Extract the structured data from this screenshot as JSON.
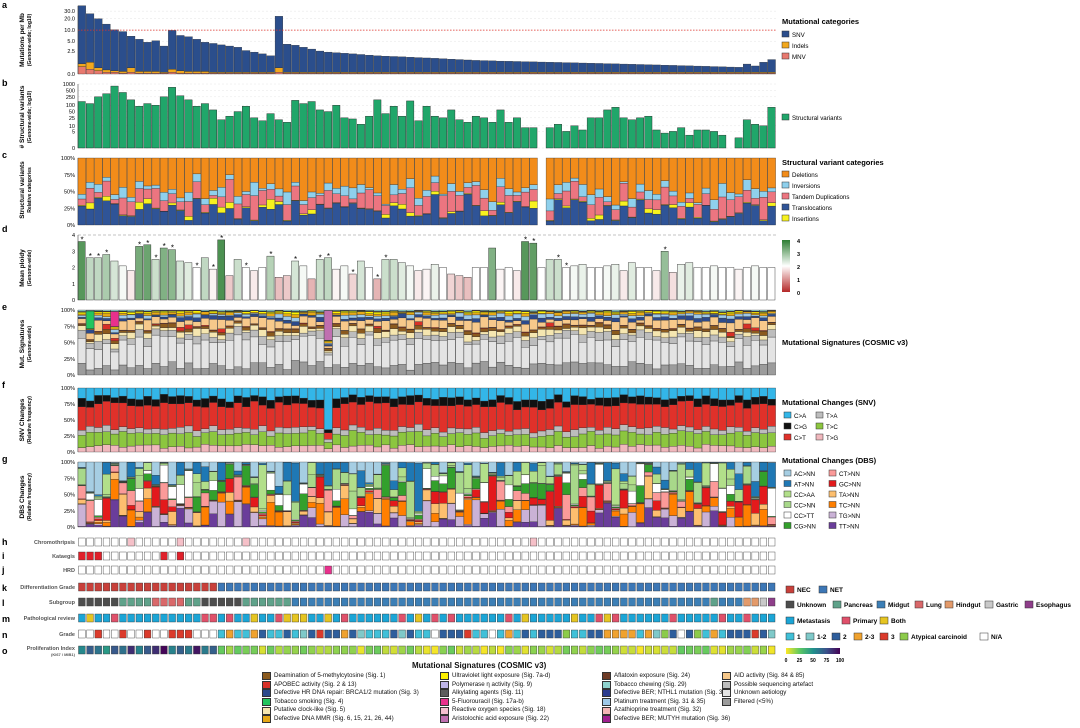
{
  "panel_letters": [
    "a",
    "b",
    "c",
    "d",
    "e",
    "f",
    "g",
    "h",
    "i",
    "j",
    "k",
    "l",
    "m",
    "n",
    "o"
  ],
  "ylabels": {
    "a": [
      "Mutations per Mb",
      "(Genome-wide; log10)"
    ],
    "b": [
      "# Structural variants",
      "(Genome-wide; log10)"
    ],
    "c": [
      "Structural variants",
      "Relative categories"
    ],
    "d": [
      "Mean ploidy",
      "(Genome-wide)"
    ],
    "e": [
      "Mut. Signatures",
      "(Genome-wide)"
    ],
    "f": [
      "SNV Changes",
      "(Relative frequency)"
    ],
    "g": [
      "DBS Changes",
      "(Relative frequency)"
    ]
  },
  "row_labels": {
    "h": "Chromothripsis",
    "i": "Kataegis",
    "j": "HRD",
    "k": "Differentiation Grade",
    "l": "Subgroup",
    "m": "Pathological review",
    "n": "Grade",
    "o1": "Proliferation Index",
    "o2": "(KI67 / MIB1)"
  },
  "ticks": {
    "a": [
      "30.0",
      "20.0",
      "10.0",
      "5.0",
      "2.5",
      "0.0"
    ],
    "b": [
      "1000",
      "500",
      "250",
      "100",
      "50",
      "25",
      "10",
      "5",
      "0"
    ],
    "pct": [
      "100%",
      "75%",
      "50%",
      "25%",
      "0%"
    ],
    "d": [
      "4",
      "3",
      "2",
      "1",
      "0"
    ],
    "d_scale": [
      "4",
      "3",
      "2",
      "1",
      "0"
    ],
    "ki": [
      "0",
      "25",
      "50",
      "75",
      "100"
    ]
  },
  "legends": {
    "a": {
      "title": "Mutational categories",
      "items": [
        {
          "label": "SNV",
          "color": "#2B4E8C"
        },
        {
          "label": "Indels",
          "color": "#F2A81D"
        },
        {
          "label": "MNV",
          "color": "#E8796F"
        }
      ]
    },
    "b": {
      "items": [
        {
          "label": "Structural variants",
          "color": "#20A66A"
        }
      ]
    },
    "c": {
      "title": "Structural variant categories",
      "items": [
        {
          "label": "Deletions",
          "color": "#F28C1A"
        },
        {
          "label": "Inversions",
          "color": "#8FD0EC"
        },
        {
          "label": "Tandem Duplications",
          "color": "#EC7580"
        },
        {
          "label": "Translocations",
          "color": "#2F5497"
        },
        {
          "label": "Insertions",
          "color": "#F7F21E"
        }
      ]
    },
    "e": {
      "title": "Mutational Signatures (COSMIC v3)"
    },
    "f": {
      "title": "Mutational Changes (SNV)",
      "items": [
        {
          "label": "C>A",
          "color": "#33B6E8"
        },
        {
          "label": "T>A",
          "color": "#BDBDBD"
        },
        {
          "label": "C>G",
          "color": "#111111"
        },
        {
          "label": "T>C",
          "color": "#8CC63F"
        },
        {
          "label": "C>T",
          "color": "#E0312A"
        },
        {
          "label": "T>G",
          "color": "#F0B8BD"
        }
      ]
    },
    "g": {
      "title": "Mutational Changes (DBS)",
      "items": [
        {
          "label": "AC>NN",
          "color": "#A6CEE3"
        },
        {
          "label": "CT>NN",
          "color": "#FB9A99"
        },
        {
          "label": "AT>NN",
          "color": "#1F78B4"
        },
        {
          "label": "GC>NN",
          "color": "#E31A1C"
        },
        {
          "label": "CC>AA",
          "color": "#B2DF8A"
        },
        {
          "label": "TA>NN",
          "color": "#FDBF6F"
        },
        {
          "label": "CC>NN",
          "color": "#A8D88A"
        },
        {
          "label": "TC>NN",
          "color": "#FF7F00"
        },
        {
          "label": "CC>TT",
          "color": "#FFFFFF"
        },
        {
          "label": "TG>NN",
          "color": "#CAB2D6"
        },
        {
          "label": "CG>NN",
          "color": "#33A02C"
        },
        {
          "label": "TT>NN",
          "color": "#6A3D9A"
        }
      ]
    },
    "k": {
      "items": [
        {
          "label": "NEC",
          "color": "#C8403A"
        },
        {
          "label": "NET",
          "color": "#3C77B6"
        }
      ]
    },
    "l": {
      "items": [
        {
          "label": "Unknown",
          "color": "#4D4D4D"
        },
        {
          "label": "Pancreas",
          "color": "#5FA28A"
        },
        {
          "label": "Midgut",
          "color": "#3C7FB6"
        },
        {
          "label": "Lung",
          "color": "#D9686A"
        },
        {
          "label": "Hindgut",
          "color": "#E39A6A"
        },
        {
          "label": "Gastric",
          "color": "#C9C9C9"
        },
        {
          "label": "Esophagus",
          "color": "#8E3E8A"
        }
      ]
    },
    "m": {
      "items": [
        {
          "label": "Metastasis",
          "color": "#1BA5D6"
        },
        {
          "label": "Primary",
          "color": "#E0506A"
        },
        {
          "label": "Both",
          "color": "#E6C521"
        }
      ]
    },
    "n": {
      "items": [
        {
          "label": "1",
          "color": "#40C0D8"
        },
        {
          "label": "1-2",
          "color": "#7FC9C9"
        },
        {
          "label": "2",
          "color": "#2E5E9C"
        },
        {
          "label": "2-3",
          "color": "#F0A22E"
        },
        {
          "label": "3",
          "color": "#DB3A2B"
        },
        {
          "label": "Atypical carcinoid",
          "color": "#8CCB4A"
        },
        {
          "label": "N/A",
          "color": "#FFFFFF"
        }
      ]
    }
  },
  "signature_legend": {
    "title": "Mutational Signatures (COSMIC v3)",
    "columns": [
      [
        {
          "label": "Deamination of 5-methylcytosine (Sig. 1)",
          "color": "#8B5A1E"
        },
        {
          "label": "APOBEC activity (Sig. 2 & 13)",
          "color": "#D73027"
        },
        {
          "label": "Defective HR DNA repair: BRCA1/2 mutation (Sig. 3)",
          "color": "#2C4A8C"
        },
        {
          "label": "Tobacco smoking (Sig. 4)",
          "color": "#22C55E"
        },
        {
          "label": "Putative clock-like (Sig. 5)",
          "color": "#F5E6B0"
        },
        {
          "label": "Defective DNA MMR (Sig. 6, 15, 21, 26, 44)",
          "color": "#E6A817"
        }
      ],
      [
        {
          "label": "Ultraviolet light exposure (Sig. 7a-d)",
          "color": "#FFF200"
        },
        {
          "label": "Polymerase η activity (Sig. 9)",
          "color": "#BFB5E8"
        },
        {
          "label": "Alkylating agents (Sig. 11)",
          "color": "#5B5B5B"
        },
        {
          "label": "5-Fluorouracil (Sig. 17a-b)",
          "color": "#E8308C"
        },
        {
          "label": "Reactive oxygen species (Sig. 18)",
          "color": "#F5C0D0"
        },
        {
          "label": "Aristolochic acid exposure (Sig. 22)",
          "color": "#C06FB0"
        }
      ],
      [
        {
          "label": "Aflatoxin exposure (Sig. 24)",
          "color": "#6E3B26"
        },
        {
          "label": "Tobacco chewing (Sig. 29)",
          "color": "#8FD3CE"
        },
        {
          "label": "Defective BER; NTHL1 mutation (Sig. 30)",
          "color": "#2A3B8F"
        },
        {
          "label": "Platinum treatment (Sig. 31 & 35)",
          "color": "#9EC9E8"
        },
        {
          "label": "Azathioprine treatment (Sig. 32)",
          "color": "#F4B6B6"
        },
        {
          "label": "Defective BER; MUTYH mutation (Sig. 36)",
          "color": "#A0208F"
        }
      ],
      [
        {
          "label": "AID activity (Sig. 84 & 85)",
          "color": "#F7C98B"
        },
        {
          "label": "Possible sequencing artefact",
          "color": "#BDBDBD"
        },
        {
          "label": "Unknown aetiology",
          "color": "#E4E4E4"
        },
        {
          "label": "Filtered (<5%)",
          "color": "#9C9C9C"
        }
      ]
    ]
  },
  "chart_data": {
    "type": "bar",
    "n_samples": 85,
    "mutations_per_mb": {
      "yscale": "log10",
      "ylim": [
        0,
        40
      ],
      "threshold": 10,
      "snv": [
        40,
        25,
        19,
        14,
        10,
        9,
        6.5,
        5.5,
        4.5,
        5,
        3.5,
        9.5,
        7,
        6.5,
        5.5,
        4.5,
        4.2,
        3.8,
        3.5,
        3.2,
        2.5,
        2.2,
        1.9,
        1.6,
        22,
        4,
        3.7,
        3.2,
        2.8,
        2.4,
        2.2,
        2.1,
        2.0,
        1.9,
        1.8,
        1.7,
        1.6,
        1.55,
        1.5,
        1.45,
        1.4,
        1.35,
        1.3,
        1.25,
        1.2,
        1.15,
        1.1,
        1.05,
        1.0,
        0.98,
        0.95,
        0.92,
        0.9,
        0.88,
        0.86,
        0.84,
        0.82,
        0.8,
        0.78,
        0.76,
        0.74,
        0.72,
        0.7,
        0.68,
        0.66,
        0.64,
        0.62,
        0.6,
        0.58,
        0.56,
        0.54,
        0.52,
        0.5,
        0.48,
        0.46,
        0.44,
        0.42,
        0.4,
        0.38,
        0.36,
        0.34,
        0.62,
        0.45,
        0.8,
        1.1
      ],
      "indels": [
        0.25,
        0.6,
        0.2,
        0.15,
        0.1,
        0.1,
        0.3,
        0.1,
        0.1,
        0.1,
        0.05,
        0.2,
        0.15,
        0.1,
        0.1,
        0.1,
        0.05,
        0.05,
        0.05,
        0.05,
        0.05,
        0.05,
        0.05,
        0.05,
        0.3,
        0.05,
        0.05,
        0.05,
        0.05,
        0.05,
        0.05,
        0.05,
        0.05,
        0.05,
        0.05,
        0.05,
        0.05,
        0.05,
        0.05,
        0.05,
        0.05,
        0.05,
        0.05,
        0.05,
        0.05,
        0.05,
        0.05,
        0.05,
        0.05,
        0.05,
        0.05,
        0.05,
        0.05,
        0.05,
        0.05,
        0.05,
        0.05,
        0.05,
        0.05,
        0.05,
        0.05,
        0.05,
        0.05,
        0.05,
        0.05,
        0.05,
        0.05,
        0.05,
        0.05,
        0.05,
        0.05,
        0.05,
        0.05,
        0.05,
        0.05,
        0.05,
        0.05,
        0.05,
        0.05,
        0.05,
        0.05,
        0.05,
        0.05,
        0.05,
        0.05
      ],
      "mnv": [
        0.5,
        0.3,
        0.2,
        0.1,
        0.1,
        0.05,
        0.1,
        0.05,
        0.05,
        0.05,
        0.05,
        0.1,
        0.05,
        0.05,
        0.05,
        0.05,
        0.05,
        0.05,
        0.05,
        0.05,
        0.05,
        0.05,
        0.05,
        0.05,
        0.1,
        0.05,
        0.05,
        0.05,
        0.05,
        0.05,
        0.05,
        0.05,
        0.05,
        0.05,
        0.05,
        0.05,
        0.05,
        0.05,
        0.05,
        0.05,
        0.05,
        0.05,
        0.05,
        0.05,
        0.05,
        0.05,
        0.05,
        0.05,
        0.05,
        0.05,
        0.05,
        0.05,
        0.05,
        0.05,
        0.05,
        0.05,
        0.05,
        0.05,
        0.05,
        0.05,
        0.05,
        0.05,
        0.05,
        0.05,
        0.05,
        0.05,
        0.05,
        0.05,
        0.05,
        0.05,
        0.05,
        0.05,
        0.05,
        0.05,
        0.05,
        0.05,
        0.05,
        0.05,
        0.05,
        0.05,
        0.05,
        0.05,
        0.05,
        0.05,
        0.05
      ]
    },
    "structural_variants": {
      "yscale": "log10",
      "ylim": [
        0,
        1000
      ],
      "values": [
        150,
        120,
        250,
        350,
        800,
        400,
        180,
        90,
        120,
        100,
        250,
        700,
        280,
        180,
        90,
        120,
        60,
        20,
        30,
        50,
        90,
        25,
        18,
        40,
        20,
        15,
        170,
        120,
        150,
        60,
        50,
        100,
        25,
        22,
        12,
        30,
        180,
        40,
        90,
        30,
        160,
        18,
        90,
        30,
        25,
        60,
        20,
        15,
        30,
        25,
        15,
        60,
        15,
        25,
        8,
        8,
        0,
        8,
        12,
        5,
        10,
        6,
        25,
        25,
        60,
        80,
        25,
        20,
        25,
        30,
        6,
        4,
        5,
        8,
        3,
        6,
        6,
        5,
        3,
        0,
        2,
        20,
        12,
        10,
        80
      ]
    },
    "sv_categories": {
      "type": "stacked_percent",
      "categories": [
        "Translocations",
        "Insertions",
        "Tandem Duplications",
        "Inversions",
        "Deletions"
      ]
    },
    "mean_ploidy": {
      "ylim": [
        0,
        4
      ],
      "dashed_line": 4,
      "values": [
        3.6,
        2.6,
        2.6,
        2.8,
        2.4,
        2.1,
        1.8,
        3.3,
        3.4,
        2.5,
        3.2,
        3.1,
        2.4,
        2.3,
        2.0,
        2.6,
        1.9,
        3.7,
        1.5,
        2.5,
        2.0,
        1.8,
        2.0,
        2.7,
        1.4,
        1.5,
        2.4,
        2.1,
        1.3,
        2.5,
        2.6,
        1.9,
        2.1,
        1.6,
        2.4,
        2.0,
        1.3,
        2.5,
        2.5,
        2.3,
        2.1,
        1.8,
        1.9,
        2.2,
        2.0,
        1.6,
        1.5,
        1.4,
        2.0,
        2.0,
        3.2,
        1.9,
        2.0,
        1.8,
        3.6,
        3.5,
        2.0,
        2.5,
        2.5,
        2.0,
        2.1,
        2.2,
        2.0,
        2.0,
        2.1,
        2.2,
        1.8,
        2.3,
        2.0,
        2.0,
        1.8,
        3.0,
        1.7,
        2.2,
        2.3,
        2.0,
        2.0,
        2.1,
        2.0,
        2.0,
        1.9,
        2.0,
        2.1,
        2.0,
        2.0
      ],
      "asterisks": [
        0,
        1,
        2,
        3,
        7,
        8,
        9,
        10,
        11,
        14,
        16,
        17,
        20,
        23,
        26,
        29,
        30,
        33,
        36,
        37,
        54,
        55,
        58,
        59,
        71
      ]
    },
    "signatures": {
      "type": "stacked_percent"
    },
    "snv_changes": {
      "type": "stacked_percent",
      "order": [
        "T>G",
        "T>C",
        "T>A",
        "C>T",
        "C>G",
        "C>A"
      ]
    },
    "dbs_changes": {
      "type": "stacked_percent"
    },
    "chromothripsis": [
      6,
      12,
      20,
      55
    ],
    "kataegis": [
      0,
      1,
      2,
      10,
      12
    ],
    "hrd": [
      30
    ],
    "differentiation_grade_nec_count": 17,
    "subgroups": [
      "Unknown",
      "Pancreas",
      "Midgut",
      "Lung",
      "Hindgut",
      "Gastric",
      "Esophagus"
    ]
  }
}
